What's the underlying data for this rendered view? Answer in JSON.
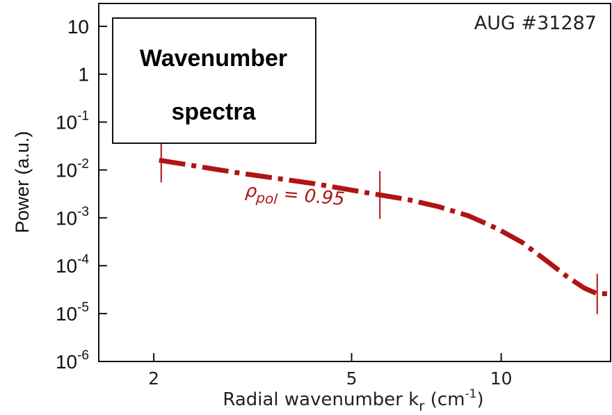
{
  "chart_data": {
    "type": "line",
    "title": "",
    "xlabel": {
      "base": "Radial wavenumber k",
      "sub": "r",
      "unit_pre": " (cm",
      "unit_sup": "-1",
      "unit_post": ")"
    },
    "ylabel": "Power (a.u.)",
    "x_scale": "log",
    "y_scale": "log",
    "xlim": [
      1.55,
      16.6
    ],
    "ylim": [
      1e-06,
      30
    ],
    "x_ticks": [
      {
        "value": 2,
        "label": "2"
      },
      {
        "value": 5,
        "label": "5"
      },
      {
        "value": 10,
        "label": "10"
      }
    ],
    "y_ticks": [
      {
        "value": 10,
        "label": "10",
        "exp": ""
      },
      {
        "value": 1,
        "label": "1",
        "exp": ""
      },
      {
        "value": 0.1,
        "label": "10",
        "exp": "-1"
      },
      {
        "value": 0.01,
        "label": "10",
        "exp": "-2"
      },
      {
        "value": 0.001,
        "label": "10",
        "exp": "-3"
      },
      {
        "value": 0.0001,
        "label": "10",
        "exp": "-4"
      },
      {
        "value": 1e-05,
        "label": "10",
        "exp": "-5"
      },
      {
        "value": 1e-06,
        "label": "10",
        "exp": "-6"
      }
    ],
    "series": [
      {
        "color": "#b01414",
        "style": "dash-dot",
        "x": [
          2.05,
          3.0,
          4.2,
          5.6,
          6.5,
          7.5,
          8.6,
          9.8,
          11.0,
          12.3,
          13.6,
          14.7,
          15.6,
          16.5
        ],
        "y": [
          0.016,
          0.0085,
          0.0052,
          0.0031,
          0.0024,
          0.0017,
          0.0011,
          0.0006,
          0.00031,
          0.00013,
          5.8e-05,
          3.4e-05,
          2.6e-05,
          2.6e-05
        ]
      }
    ],
    "error_bars": [
      {
        "x": 2.07,
        "y_low": 0.0055,
        "y_high": 0.05
      },
      {
        "x": 5.7,
        "y_low": 0.00095,
        "y_high": 0.0095
      },
      {
        "x": 15.6,
        "y_low": 9.8e-06,
        "y_high": 6.75e-05
      }
    ],
    "annotations": {
      "curve_label": {
        "symbol": "ρ",
        "sub": "pol",
        "text": " = 0.95",
        "x": 3.05,
        "y": 0.0028
      },
      "shot": "AUG #31287",
      "box_title_line1": "Wavenumber",
      "box_title_line2": "spectra"
    },
    "grid": false,
    "legend": "none"
  },
  "colors": {
    "series": "#b01414",
    "axes": "#111111",
    "text": "#111111"
  }
}
